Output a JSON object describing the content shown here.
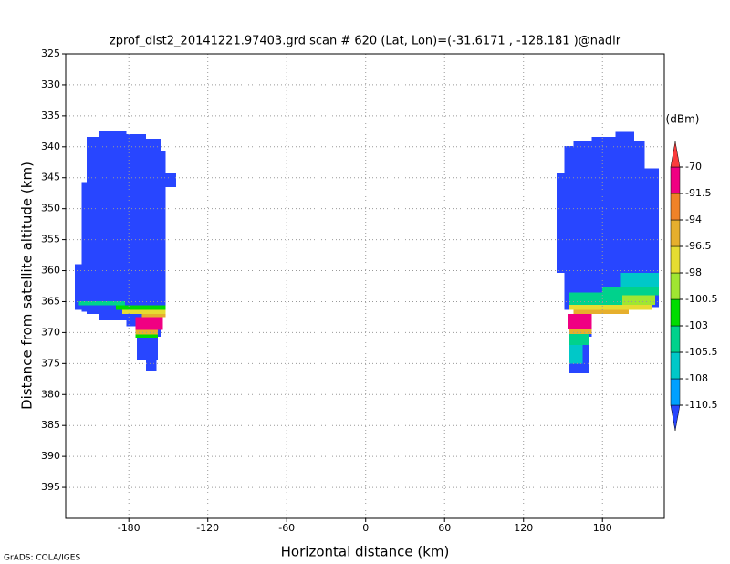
{
  "chart_data": {
    "type": "field",
    "title": "zprof_dist2_20141221.97403.grd  scan # 620  (Lat, Lon)=(-31.6171 , -128.181 )@nadir",
    "x_label": "Horizontal distance (km)",
    "y_label": "Distance from satellite altitude (km)",
    "colorbar_unit": "(dBm)",
    "footer": "GrADS: COLA/IGES",
    "xlim": [
      -228,
      227
    ],
    "ylim": [
      325,
      400
    ],
    "y_reversed": true,
    "xticks": [
      -180,
      -120,
      -60,
      0,
      60,
      120,
      180
    ],
    "yticks": [
      325,
      330,
      335,
      340,
      345,
      350,
      355,
      360,
      365,
      370,
      375,
      380,
      385,
      390,
      395
    ],
    "grid": true,
    "levels": [
      -110.5,
      -108,
      -105.5,
      -103,
      -100.5,
      -98,
      -96.5,
      -94,
      -91.5,
      -70
    ],
    "colors": [
      "#2846ff",
      "#00a0ff",
      "#00c8c8",
      "#00d28c",
      "#00dc00",
      "#a0e632",
      "#e6dc32",
      "#e6af2d",
      "#f08228",
      "#f00082",
      "#fa3c3c"
    ],
    "cells": [
      {
        "x": [
          -221,
          -216
        ],
        "y": [
          359,
          366.3
        ],
        "value": -115
      },
      {
        "x": [
          -216,
          -212
        ],
        "y": [
          345.7,
          366.6
        ],
        "value": -115
      },
      {
        "x": [
          -212,
          -203
        ],
        "y": [
          338.4,
          367
        ],
        "value": -115
      },
      {
        "x": [
          -203,
          -182
        ],
        "y": [
          337.4,
          368
        ],
        "value": -115
      },
      {
        "x": [
          -182,
          -167
        ],
        "y": [
          338,
          369
        ],
        "value": -115
      },
      {
        "x": [
          -167,
          -156
        ],
        "y": [
          338.7,
          370.7
        ],
        "value": -115
      },
      {
        "x": [
          -156,
          -152
        ],
        "y": [
          340.6,
          367
        ],
        "value": -115
      },
      {
        "x": [
          -152,
          -144
        ],
        "y": [
          344.3,
          346.5
        ],
        "value": -115
      },
      {
        "x": [
          -174,
          -158
        ],
        "y": [
          369,
          374.5
        ],
        "value": -115
      },
      {
        "x": [
          -167,
          -159
        ],
        "y": [
          374.5,
          376.3
        ],
        "value": -115
      },
      {
        "x": [
          -218,
          -183
        ],
        "y": [
          364.9,
          365.6
        ],
        "value": -104
      },
      {
        "x": [
          -190,
          -152
        ],
        "y": [
          365.6,
          366.3
        ],
        "value": -101.5
      },
      {
        "x": [
          -185,
          -152
        ],
        "y": [
          366.3,
          367
        ],
        "value": -97
      },
      {
        "x": [
          -170,
          -152
        ],
        "y": [
          367,
          367.5
        ],
        "value": -95
      },
      {
        "x": [
          -175,
          -154
        ],
        "y": [
          367.5,
          369.6
        ],
        "value": -85
      },
      {
        "x": [
          -175,
          -158
        ],
        "y": [
          369.6,
          370.3
        ],
        "value": -95
      },
      {
        "x": [
          -175,
          -158
        ],
        "y": [
          370.3,
          370.8
        ],
        "value": -101.5
      },
      {
        "x": [
          145,
          151
        ],
        "y": [
          344.3,
          360.4
        ],
        "value": -115
      },
      {
        "x": [
          151,
          158
        ],
        "y": [
          339.9,
          366.3
        ],
        "value": -115
      },
      {
        "x": [
          158,
          172
        ],
        "y": [
          339.1,
          370.7
        ],
        "value": -115
      },
      {
        "x": [
          172,
          190
        ],
        "y": [
          338.4,
          367
        ],
        "value": -115
      },
      {
        "x": [
          190,
          204
        ],
        "y": [
          337.6,
          366.3
        ],
        "value": -115
      },
      {
        "x": [
          204,
          212
        ],
        "y": [
          339.1,
          366.3
        ],
        "value": -115
      },
      {
        "x": [
          212,
          223
        ],
        "y": [
          343.5,
          365.9
        ],
        "value": -115
      },
      {
        "x": [
          155,
          170
        ],
        "y": [
          370.7,
          376.6
        ],
        "value": -115
      },
      {
        "x": [
          194,
          223
        ],
        "y": [
          360.4,
          362.6
        ],
        "value": -107
      },
      {
        "x": [
          180,
          223
        ],
        "y": [
          362.6,
          364
        ],
        "value": -104
      },
      {
        "x": [
          155,
          200
        ],
        "y": [
          363.5,
          365.5
        ],
        "value": -104
      },
      {
        "x": [
          195,
          220
        ],
        "y": [
          364,
          365.5
        ],
        "value": -99
      },
      {
        "x": [
          155,
          218
        ],
        "y": [
          365.5,
          366.3
        ],
        "value": -97
      },
      {
        "x": [
          158,
          200
        ],
        "y": [
          366.3,
          367
        ],
        "value": -94.5
      },
      {
        "x": [
          154,
          172
        ],
        "y": [
          367,
          369.4
        ],
        "value": -85
      },
      {
        "x": [
          155,
          172
        ],
        "y": [
          369.4,
          370.2
        ],
        "value": -95
      },
      {
        "x": [
          155,
          170
        ],
        "y": [
          370.2,
          372
        ],
        "value": -104
      },
      {
        "x": [
          155,
          165
        ],
        "y": [
          372,
          375
        ],
        "value": -107
      }
    ]
  }
}
